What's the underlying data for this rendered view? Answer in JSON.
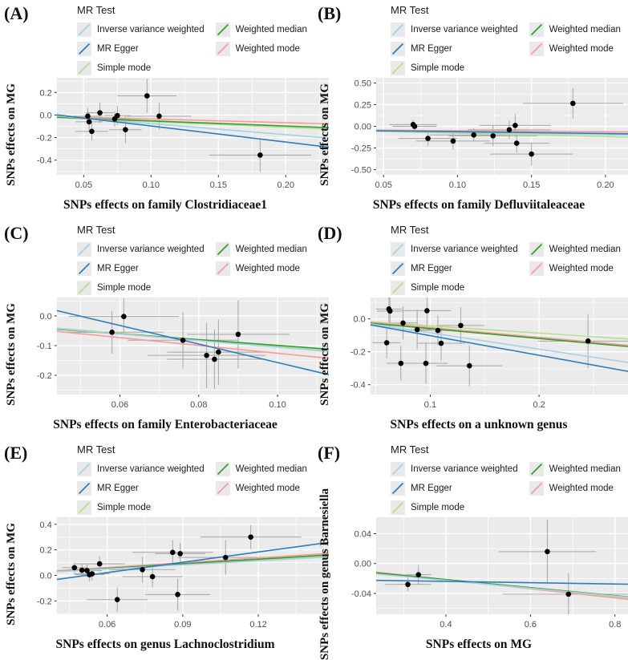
{
  "colors": {
    "ivw": "#a9cfe5",
    "egger": "#2d7dbb",
    "simple": "#b4df8e",
    "wmedian": "#33a02c",
    "wmode": "#fb9a99",
    "panel_bg": "#ebebeb",
    "grid": "#ffffff",
    "errorbar": "#a6a6a6",
    "point": "#000000",
    "tick_text": "#4d4d4d"
  },
  "legend": {
    "title": "MR Test",
    "items": [
      {
        "id": "ivw",
        "label": "Inverse variance weighted"
      },
      {
        "id": "egger",
        "label": "MR Egger"
      },
      {
        "id": "simple",
        "label": "Simple mode"
      },
      {
        "id": "wmedian",
        "label": "Weighted median"
      },
      {
        "id": "wmode",
        "label": "Weighted mode"
      }
    ]
  },
  "chart_data": [
    {
      "type": "scatter",
      "tag": "(A)",
      "xlabel": "SNPs effects on family Clostridiaceae1",
      "ylabel": "SNPs effects on MG",
      "xlim": [
        0.03,
        0.232
      ],
      "ylim": [
        -0.53,
        0.33
      ],
      "xticks": [
        0.05,
        0.1,
        0.15,
        0.2
      ],
      "xtick_labels": [
        "0.05",
        "0.10",
        "0.15",
        "0.20"
      ],
      "xminor": [
        0.075,
        0.125,
        0.175,
        0.225
      ],
      "yticks": [
        0.2,
        0.0,
        -0.2,
        -0.4
      ],
      "ytick_labels": [
        "0.2",
        "0.0",
        "-0.2",
        "-0.4"
      ],
      "yminor": [
        0.3,
        0.1,
        -0.1,
        -0.3,
        -0.5
      ],
      "points": [
        [
          0.053,
          -0.01,
          0.011,
          0.07
        ],
        [
          0.054,
          -0.06,
          0.01,
          0.085
        ],
        [
          0.056,
          -0.145,
          0.012,
          0.08
        ],
        [
          0.062,
          0.02,
          0.01,
          0.09
        ],
        [
          0.073,
          -0.035,
          0.012,
          0.07
        ],
        [
          0.075,
          -0.005,
          0.01,
          0.085
        ],
        [
          0.081,
          -0.13,
          0.012,
          0.12
        ],
        [
          0.097,
          0.17,
          0.022,
          0.15
        ],
        [
          0.106,
          -0.01,
          0.024,
          0.12
        ],
        [
          0.181,
          -0.355,
          0.038,
          0.15
        ]
      ],
      "lines": [
        {
          "series": "simple",
          "y": [
            -0.022,
            -0.125
          ]
        },
        {
          "series": "wmode",
          "y": [
            -0.013,
            -0.078
          ]
        },
        {
          "series": "wmedian",
          "y": [
            -0.02,
            -0.112
          ]
        },
        {
          "series": "ivw",
          "y": [
            -0.008,
            -0.205
          ]
        },
        {
          "series": "egger",
          "y": [
            0.002,
            -0.285
          ]
        }
      ]
    },
    {
      "type": "scatter",
      "tag": "(B)",
      "xlabel": "SNPs effects on family Defluviitaleaceae",
      "ylabel": "SNPs effects on MG",
      "xlim": [
        0.045,
        0.225
      ],
      "ylim": [
        -0.56,
        0.56
      ],
      "xticks": [
        0.05,
        0.1,
        0.15,
        0.2
      ],
      "xtick_labels": [
        "0.05",
        "0.10",
        "0.15",
        "0.20"
      ],
      "xminor": [
        0.075,
        0.125,
        0.175
      ],
      "yticks": [
        0.5,
        0.25,
        0.0,
        -0.25,
        -0.5
      ],
      "ytick_labels": [
        "0.50",
        "0.25",
        "0.00",
        "-0.25",
        "-0.50"
      ],
      "yminor": [
        0.375,
        0.125,
        -0.125,
        -0.375
      ],
      "points": [
        [
          0.07,
          0.02,
          0.016,
          0.055
        ],
        [
          0.071,
          0.0,
          0.015,
          0.045
        ],
        [
          0.08,
          -0.14,
          0.02,
          0.09
        ],
        [
          0.097,
          -0.17,
          0.025,
          0.095
        ],
        [
          0.111,
          -0.1,
          0.03,
          0.075
        ],
        [
          0.124,
          -0.11,
          0.03,
          0.12
        ],
        [
          0.135,
          -0.04,
          0.028,
          0.105
        ],
        [
          0.139,
          0.01,
          0.024,
          0.13
        ],
        [
          0.14,
          -0.195,
          0.022,
          0.11
        ],
        [
          0.15,
          -0.32,
          0.028,
          0.135
        ],
        [
          0.178,
          0.265,
          0.034,
          0.175
        ]
      ],
      "lines": [
        {
          "series": "simple",
          "y": [
            -0.058,
            -0.128
          ]
        },
        {
          "series": "wmode",
          "y": [
            -0.044,
            -0.066
          ]
        },
        {
          "series": "wmedian",
          "y": [
            -0.053,
            -0.095
          ]
        },
        {
          "series": "ivw",
          "y": [
            -0.055,
            -0.102
          ]
        },
        {
          "series": "egger",
          "y": [
            -0.051,
            -0.088
          ]
        }
      ]
    },
    {
      "type": "scatter",
      "tag": "(C)",
      "xlabel": "SNPs effects on family Enterobacteriaceae",
      "ylabel": "SNPs effects on MG",
      "xlim": [
        0.044,
        0.113
      ],
      "ylim": [
        -0.265,
        0.062
      ],
      "xticks": [
        0.06,
        0.08,
        0.1
      ],
      "xtick_labels": [
        "0.06",
        "0.08",
        "0.10"
      ],
      "xminor": [
        0.05,
        0.07,
        0.09,
        0.11
      ],
      "yticks": [
        0.0,
        -0.1,
        -0.2
      ],
      "ytick_labels": [
        "0.0",
        "-0.1",
        "-0.2"
      ],
      "yminor": [
        0.05,
        -0.05,
        -0.15,
        -0.25
      ],
      "points": [
        [
          0.058,
          -0.055,
          0.013,
          0.072
        ],
        [
          0.061,
          -0.002,
          0.014,
          0.062
        ],
        [
          0.076,
          -0.082,
          0.014,
          0.095
        ],
        [
          0.082,
          -0.133,
          0.015,
          0.11
        ],
        [
          0.084,
          -0.146,
          0.012,
          0.1
        ],
        [
          0.085,
          -0.122,
          0.013,
          0.11
        ],
        [
          0.09,
          -0.062,
          0.013,
          0.115
        ]
      ],
      "lines": [
        {
          "series": "simple",
          "y": [
            -0.041,
            -0.116
          ]
        },
        {
          "series": "wmode",
          "y": [
            -0.052,
            -0.143
          ]
        },
        {
          "series": "wmedian",
          "y": [
            -0.045,
            -0.112
          ]
        },
        {
          "series": "ivw",
          "y": [
            -0.043,
            -0.12
          ]
        },
        {
          "series": "egger",
          "y": [
            0.018,
            -0.198
          ]
        }
      ]
    },
    {
      "type": "scatter",
      "tag": "(D)",
      "xlabel": "SNPs effects on a unknown genus",
      "ylabel": "SNPs effects on MG",
      "xlim": [
        0.045,
        0.295
      ],
      "ylim": [
        -0.46,
        0.13
      ],
      "xticks": [
        0.1,
        0.2
      ],
      "xtick_labels": [
        "0.1",
        "0.2"
      ],
      "xminor": [
        0.05,
        0.15,
        0.25
      ],
      "yticks": [
        0.0,
        -0.2,
        -0.4
      ],
      "ytick_labels": [
        "0.0",
        "-0.2",
        "-0.4"
      ],
      "yminor": [
        0.1,
        -0.1,
        -0.3
      ],
      "points": [
        [
          0.062,
          0.06,
          0.012,
          0.09
        ],
        [
          0.063,
          0.048,
          0.012,
          0.095
        ],
        [
          0.06,
          -0.145,
          0.013,
          0.095
        ],
        [
          0.075,
          -0.025,
          0.013,
          0.1
        ],
        [
          0.073,
          -0.27,
          0.013,
          0.105
        ],
        [
          0.088,
          -0.065,
          0.013,
          0.12
        ],
        [
          0.097,
          0.05,
          0.022,
          0.1
        ],
        [
          0.096,
          -0.27,
          0.02,
          0.125
        ],
        [
          0.107,
          -0.07,
          0.026,
          0.09
        ],
        [
          0.11,
          -0.148,
          0.022,
          0.105
        ],
        [
          0.128,
          -0.04,
          0.022,
          0.11
        ],
        [
          0.136,
          -0.285,
          0.03,
          0.125
        ],
        [
          0.245,
          -0.135,
          0.046,
          0.165
        ]
      ],
      "lines": [
        {
          "series": "simple",
          "y": [
            -0.018,
            -0.128
          ]
        },
        {
          "series": "wmode",
          "y": [
            -0.02,
            -0.168
          ]
        },
        {
          "series": "wmedian",
          "y": [
            -0.026,
            -0.176
          ]
        },
        {
          "series": "ivw",
          "y": [
            -0.03,
            -0.278
          ]
        },
        {
          "series": "egger",
          "y": [
            -0.036,
            -0.335
          ]
        }
      ]
    },
    {
      "type": "scatter",
      "tag": "(E)",
      "xlabel": "SNPs effects on genus Lachnoclostridium",
      "ylabel": "SNPs effects on MG",
      "xlim": [
        0.04,
        0.148
      ],
      "ylim": [
        -0.305,
        0.455
      ],
      "xticks": [
        0.06,
        0.09,
        0.12
      ],
      "xtick_labels": [
        "0.06",
        "0.09",
        "0.12"
      ],
      "xminor": [
        0.045,
        0.075,
        0.105,
        0.135
      ],
      "yticks": [
        0.4,
        0.2,
        0.0,
        -0.2
      ],
      "ytick_labels": [
        "0.4",
        "0.2",
        "0.0",
        "-0.2"
      ],
      "yminor": [
        0.3,
        0.1,
        -0.1,
        -0.3
      ],
      "points": [
        [
          0.047,
          0.06,
          0.005,
          0.042
        ],
        [
          0.05,
          0.04,
          0.006,
          0.05
        ],
        [
          0.052,
          0.038,
          0.006,
          0.05
        ],
        [
          0.053,
          0.005,
          0.006,
          0.052
        ],
        [
          0.054,
          0.012,
          0.007,
          0.05
        ],
        [
          0.057,
          0.09,
          0.01,
          0.06
        ],
        [
          0.064,
          -0.19,
          0.012,
          0.095
        ],
        [
          0.074,
          0.045,
          0.013,
          0.1
        ],
        [
          0.078,
          -0.01,
          0.012,
          0.085
        ],
        [
          0.086,
          0.18,
          0.016,
          0.095
        ],
        [
          0.088,
          -0.15,
          0.013,
          0.125
        ],
        [
          0.089,
          0.17,
          0.01,
          0.085
        ],
        [
          0.107,
          0.14,
          0.019,
          0.135
        ],
        [
          0.117,
          0.3,
          0.02,
          0.095
        ]
      ],
      "lines": [
        {
          "series": "simple",
          "y": [
            0.028,
            0.152
          ]
        },
        {
          "series": "wmode",
          "y": [
            0.036,
            0.172
          ]
        },
        {
          "series": "wmedian",
          "y": [
            0.03,
            0.16
          ]
        },
        {
          "series": "ivw",
          "y": [
            0.029,
            0.144
          ]
        },
        {
          "series": "egger",
          "y": [
            -0.032,
            0.258
          ]
        }
      ]
    },
    {
      "type": "scatter",
      "tag": "(F)",
      "xlabel": "SNPs effects on MG",
      "ylabel": "SNPs effects on genus Barnesiella",
      "xlim": [
        0.235,
        0.865
      ],
      "ylim": [
        -0.068,
        0.062
      ],
      "xticks": [
        0.4,
        0.6,
        0.8
      ],
      "xtick_labels": [
        "0.4",
        "0.6",
        "0.8"
      ],
      "xminor": [
        0.3,
        0.5,
        0.7
      ],
      "yticks": [
        0.04,
        0.0,
        -0.04
      ],
      "ytick_labels": [
        "0.04",
        "0.00",
        "-0.04"
      ],
      "yminor": [
        0.02,
        -0.02,
        -0.06
      ],
      "points": [
        [
          0.31,
          -0.028,
          0.055,
          0.009
        ],
        [
          0.335,
          -0.015,
          0.03,
          0.013
        ],
        [
          0.64,
          0.016,
          0.115,
          0.043
        ],
        [
          0.69,
          -0.041,
          0.155,
          0.028
        ]
      ],
      "lines": [
        {
          "series": "simple",
          "y": [
            -0.013,
            -0.048
          ]
        },
        {
          "series": "wmode",
          "y": [
            -0.0115,
            -0.05
          ]
        },
        {
          "series": "wmedian",
          "y": [
            -0.0125,
            -0.0465
          ]
        },
        {
          "series": "ivw",
          "y": [
            -0.014,
            -0.047
          ]
        },
        {
          "series": "egger",
          "y": [
            -0.0225,
            -0.028
          ]
        }
      ]
    }
  ]
}
